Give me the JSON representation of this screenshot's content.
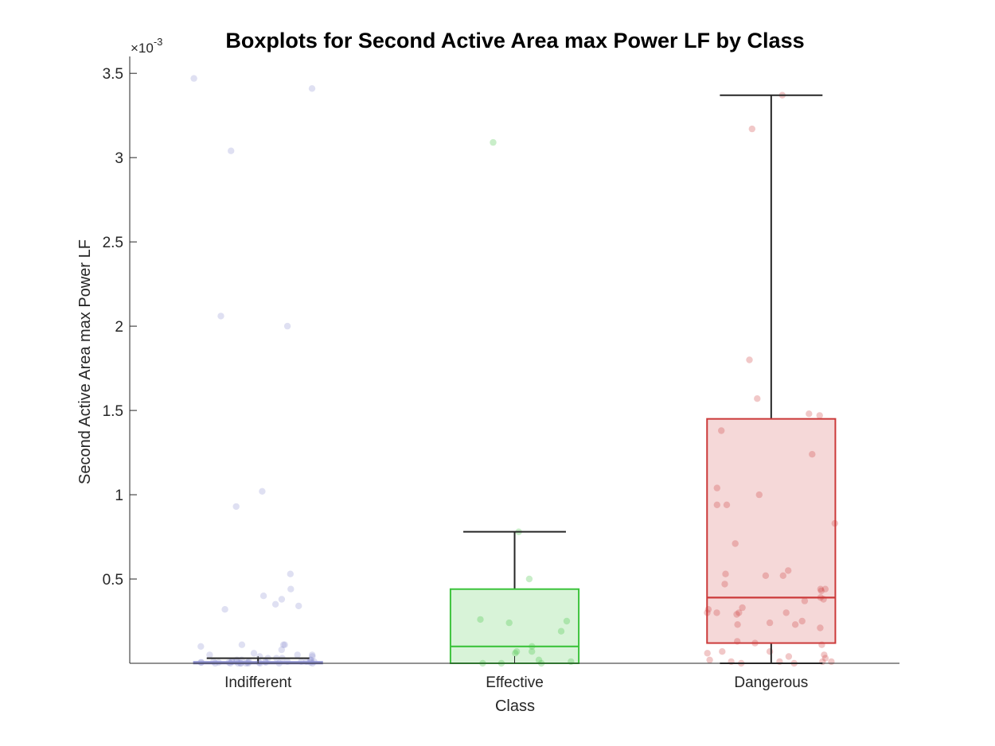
{
  "chart_data": {
    "type": "boxplot",
    "title": "Boxplots for Second Active Area max Power LF by Class",
    "xlabel": "Class",
    "ylabel": "Second Active Area max Power LF",
    "y_multiplier_label": "×10",
    "y_multiplier_exponent": "-3",
    "ylim": [
      0,
      0.0036
    ],
    "yticks": [
      0.0005,
      0.001,
      0.0015,
      0.002,
      0.0025,
      0.003,
      0.0035
    ],
    "ytick_labels": [
      "0.5",
      "1",
      "1.5",
      "2",
      "2.5",
      "3",
      "3.5"
    ],
    "categories": [
      "Indifferent",
      "Effective",
      "Dangerous"
    ],
    "boxes": [
      {
        "category": "Indifferent",
        "color": "#8c8fcf",
        "q1": 1e-06,
        "median": 3e-06,
        "q3": 8e-06,
        "whisker_low": 0.0,
        "whisker_high": 3e-05,
        "points": [
          0.00347,
          0.00341,
          0.00304,
          0.00206,
          0.002,
          0.00102,
          0.00093,
          0.00053,
          0.00044,
          0.0004,
          0.00038,
          0.00035,
          0.00034,
          0.00032,
          0.00011,
          0.00011,
          0.00011,
          0.0001,
          8e-05,
          6e-05,
          5e-05,
          5e-05,
          5e-05,
          4e-05,
          4e-05,
          3e-05,
          3e-05,
          3e-05,
          2e-05,
          2e-05,
          2e-05,
          2e-05,
          1e-05,
          1e-05,
          1e-05,
          1e-05,
          1e-05,
          1e-05,
          1e-05,
          1e-05,
          1e-05,
          1e-05,
          5e-06,
          5e-06,
          5e-06,
          5e-06,
          5e-06,
          5e-06,
          5e-06,
          5e-06,
          0.0,
          0.0,
          0.0,
          0.0,
          0.0,
          0.0,
          0.0,
          0.0,
          0.0,
          0.0
        ]
      },
      {
        "category": "Effective",
        "color": "#3cc33c",
        "q1": 0.0,
        "median": 0.0001,
        "q3": 0.00044,
        "whisker_low": 0.0,
        "whisker_high": 0.00078,
        "points": [
          0.00309,
          0.00078,
          0.0005,
          0.00026,
          0.00025,
          0.00024,
          0.00019,
          0.0001,
          7e-05,
          7e-05,
          6e-05,
          2e-05,
          1e-05,
          0.0,
          0.0,
          0.0
        ]
      },
      {
        "category": "Dangerous",
        "color": "#cc3a3a",
        "q1": 0.00012,
        "median": 0.00039,
        "q3": 0.00145,
        "whisker_low": 0.0,
        "whisker_high": 0.00337,
        "points": [
          0.00337,
          0.00317,
          0.0018,
          0.00157,
          0.00148,
          0.00147,
          0.00138,
          0.00124,
          0.00104,
          0.001,
          0.00094,
          0.00094,
          0.00083,
          0.00071,
          0.00055,
          0.00053,
          0.00052,
          0.00052,
          0.00047,
          0.00044,
          0.00044,
          0.00043,
          0.00039,
          0.00038,
          0.00037,
          0.00033,
          0.00032,
          0.0003,
          0.0003,
          0.0003,
          0.0003,
          0.00029,
          0.00025,
          0.00024,
          0.00023,
          0.00023,
          0.00021,
          0.00013,
          0.00012,
          0.00011,
          7e-05,
          7e-05,
          6e-05,
          5e-05,
          4e-05,
          3e-05,
          2e-05,
          1e-05,
          1e-05,
          1e-05,
          1e-05,
          0.0,
          0.0
        ]
      }
    ]
  }
}
